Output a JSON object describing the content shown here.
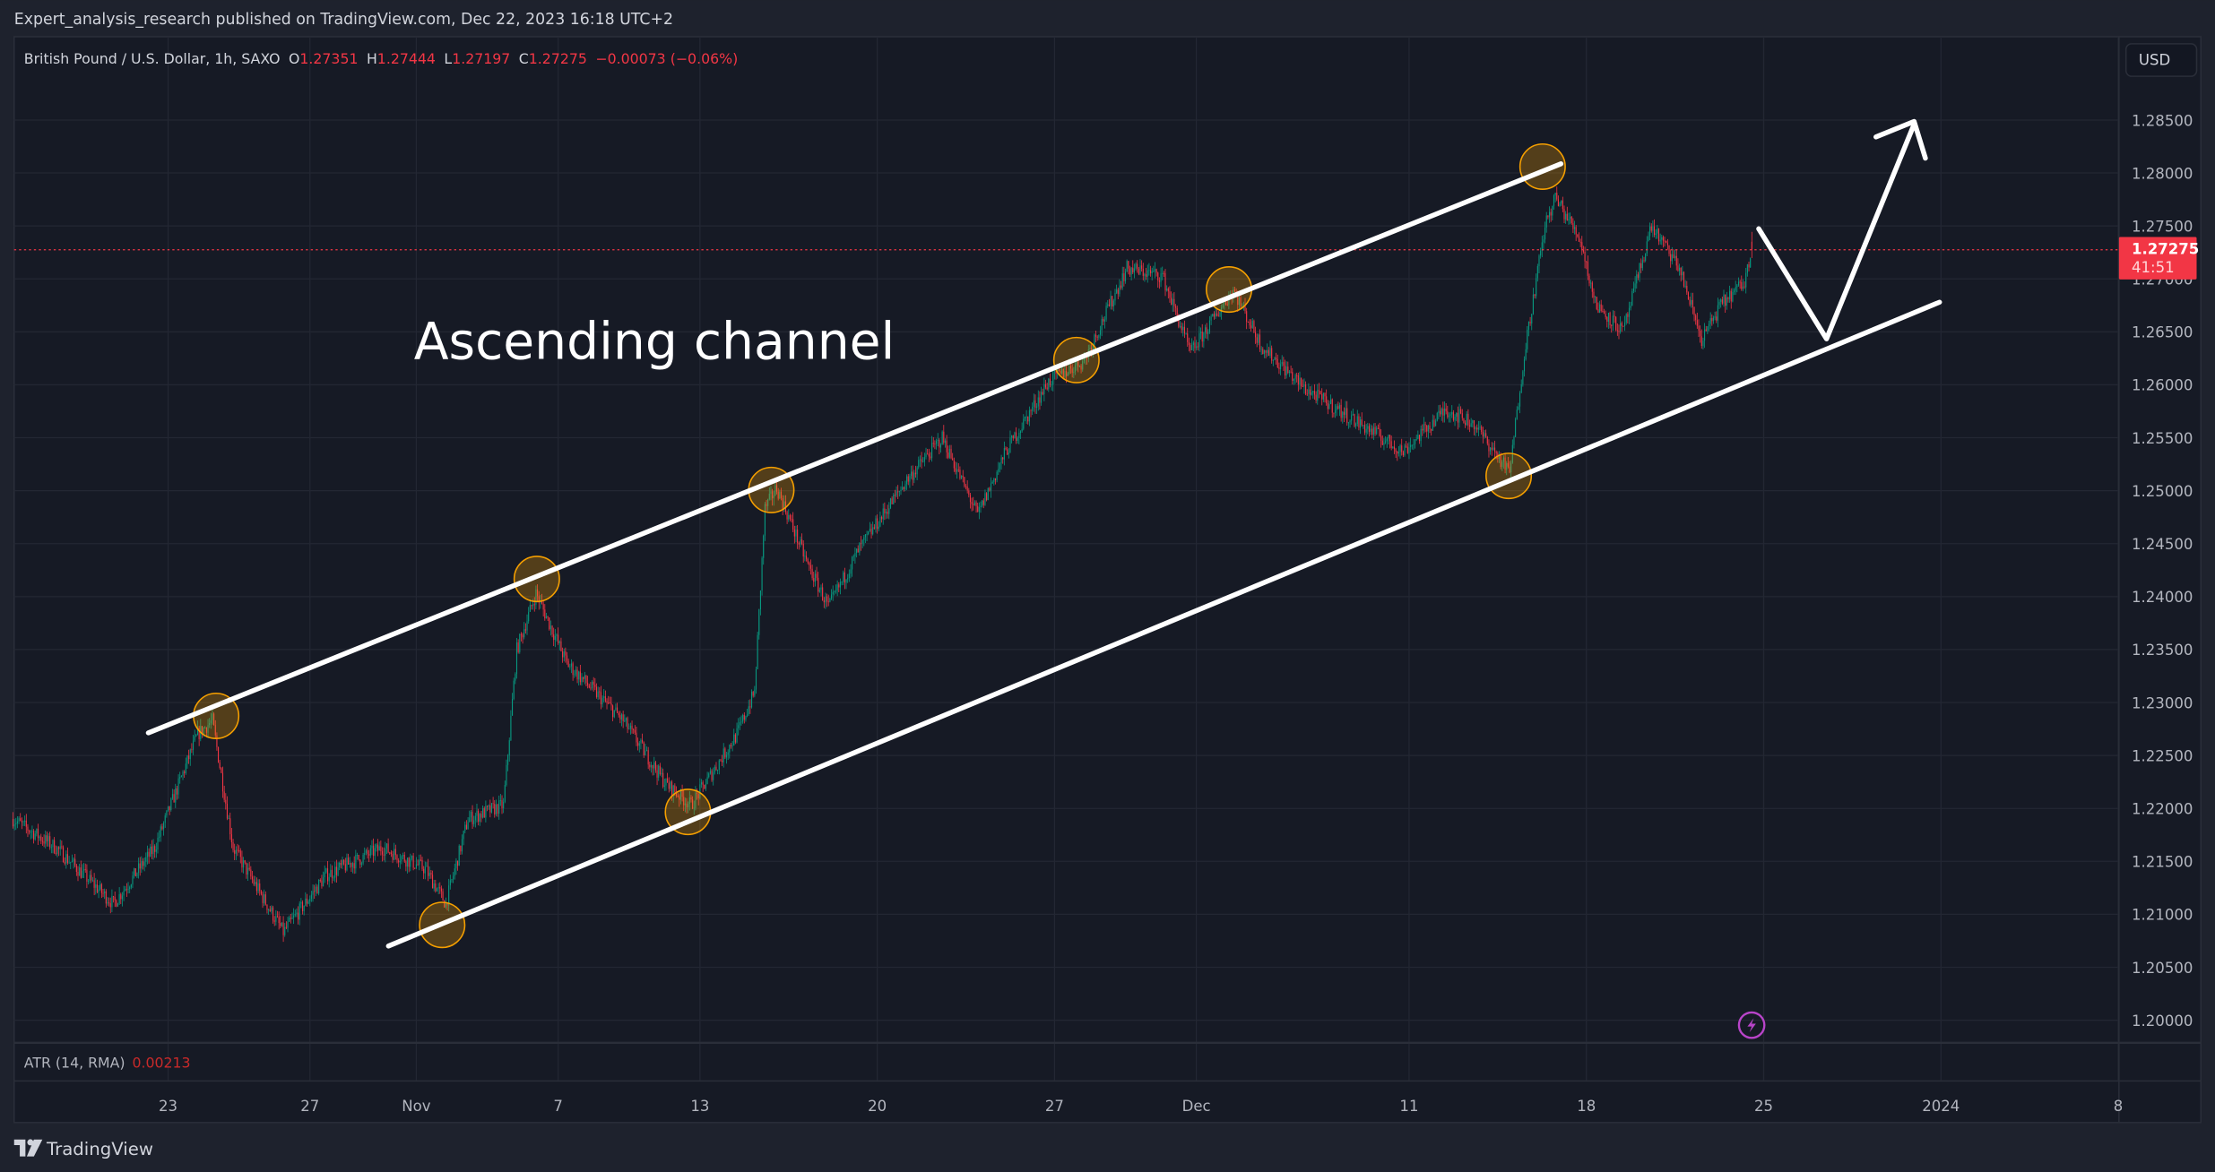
{
  "header": {
    "published": "Expert_analysis_research published on TradingView.com, Dec 22, 2023 16:18 UTC+2"
  },
  "legend": {
    "symbol": "British Pound / U.S. Dollar, 1h, SAXO",
    "o_label": "O",
    "o": "1.27351",
    "h_label": "H",
    "h": "1.27444",
    "l_label": "L",
    "l": "1.27197",
    "c_label": "C",
    "c": "1.27275",
    "change": "−0.00073 (−0.06%)"
  },
  "price_axis": {
    "currency": "USD",
    "last_price": "1.27275",
    "countdown": "41:51"
  },
  "atr": {
    "label": "ATR (14, RMA)",
    "value": "0.00213"
  },
  "annotation": {
    "text": "Ascending channel"
  },
  "footer": {
    "brand": "TradingView"
  },
  "colors": {
    "up": "#089981",
    "down": "#f23645",
    "channel": "#ffffff",
    "touch_marker": "#f59f00",
    "alert": "#b844c9"
  },
  "chart_data": {
    "type": "candlestick",
    "symbol": "GBPUSD",
    "interval": "1h",
    "ylim": [
      1.1975,
      1.2895
    ],
    "y_ticks": [
      "1.28500",
      "1.28000",
      "1.27500",
      "1.27000",
      "1.26500",
      "1.26000",
      "1.25500",
      "1.25000",
      "1.24500",
      "1.24000",
      "1.23500",
      "1.23000",
      "1.22500",
      "1.22000",
      "1.21500",
      "1.21000",
      "1.20500",
      "1.20000"
    ],
    "x_ticks": [
      {
        "label": "23",
        "date": "2023-10-23"
      },
      {
        "label": "27",
        "date": "2023-10-27"
      },
      {
        "label": "Nov",
        "date": "2023-11-01"
      },
      {
        "label": "7",
        "date": "2023-11-07"
      },
      {
        "label": "13",
        "date": "2023-11-13"
      },
      {
        "label": "20",
        "date": "2023-11-20"
      },
      {
        "label": "27",
        "date": "2023-11-27"
      },
      {
        "label": "Dec",
        "date": "2023-12-01"
      },
      {
        "label": "11",
        "date": "2023-12-11"
      },
      {
        "label": "18",
        "date": "2023-12-18"
      },
      {
        "label": "25",
        "date": "2023-12-25"
      },
      {
        "label": "2024",
        "date": "2024-01-01"
      },
      {
        "label": "8",
        "date": "2024-01-08"
      }
    ],
    "grid": true,
    "price_path": [
      [
        "2023-10-16T15",
        1.219
      ],
      [
        "2023-10-17T20",
        1.2163
      ],
      [
        "2023-10-19T11",
        1.211
      ],
      [
        "2023-10-20T15",
        1.2163
      ],
      [
        "2023-10-23T20",
        1.227
      ],
      [
        "2023-10-24T06",
        1.2283
      ],
      [
        "2023-10-24T20",
        1.2163
      ],
      [
        "2023-10-26T06",
        1.2083
      ],
      [
        "2023-10-27T11",
        1.2137
      ],
      [
        "2023-10-31T01",
        1.2163
      ],
      [
        "2023-11-01T06",
        1.2143
      ],
      [
        "2023-11-01T20",
        1.211
      ],
      [
        "2023-11-02T11",
        1.219
      ],
      [
        "2023-11-03T11",
        1.2203
      ],
      [
        "2023-11-03T20",
        1.235
      ],
      [
        "2023-11-06T09",
        1.2403
      ],
      [
        "2023-11-07T06",
        1.2337
      ],
      [
        "2023-11-08T20",
        1.2283
      ],
      [
        "2023-11-10T01",
        1.2223
      ],
      [
        "2023-11-10T18",
        1.2203
      ],
      [
        "2023-11-14T01",
        1.227
      ],
      [
        "2023-11-14T13",
        1.231
      ],
      [
        "2023-11-14T20",
        1.2483
      ],
      [
        "2023-11-15T04",
        1.2503
      ],
      [
        "2023-11-16T01",
        1.243
      ],
      [
        "2023-11-16T15",
        1.239
      ],
      [
        "2023-11-17T11",
        1.2443
      ],
      [
        "2023-11-20T20",
        1.251
      ],
      [
        "2023-11-21T20",
        1.255
      ],
      [
        "2023-11-22T20",
        1.2477
      ],
      [
        "2023-11-23T15",
        1.2537
      ],
      [
        "2023-11-24T20",
        1.2603
      ],
      [
        "2023-11-27T20",
        1.2623
      ],
      [
        "2023-11-29T01",
        1.271
      ],
      [
        "2023-11-30T01",
        1.2703
      ],
      [
        "2023-11-30T20",
        1.263
      ],
      [
        "2023-12-04T01",
        1.269
      ],
      [
        "2023-12-04T20",
        1.2637
      ],
      [
        "2023-12-06T01",
        1.2597
      ],
      [
        "2023-12-07T15",
        1.2563
      ],
      [
        "2023-12-08T20",
        1.2537
      ],
      [
        "2023-12-12T01",
        1.2577
      ],
      [
        "2023-12-12T20",
        1.2563
      ],
      [
        "2023-12-13T20",
        1.2517
      ],
      [
        "2023-12-14T06",
        1.263
      ],
      [
        "2023-12-14T20",
        1.275
      ],
      [
        "2023-12-15T03",
        1.2777
      ],
      [
        "2023-12-15T20",
        1.2737
      ],
      [
        "2023-12-18T06",
        1.2677
      ],
      [
        "2023-12-19T01",
        1.265
      ],
      [
        "2023-12-19T20",
        1.275
      ],
      [
        "2023-12-20T15",
        1.271
      ],
      [
        "2023-12-21T06",
        1.2643
      ],
      [
        "2023-12-21T20",
        1.2677
      ],
      [
        "2023-12-22T11",
        1.2697
      ],
      [
        "2023-12-22T16",
        1.27275
      ]
    ],
    "last": {
      "open": 1.27351,
      "high": 1.27444,
      "low": 1.27197,
      "close": 1.27275
    }
  }
}
